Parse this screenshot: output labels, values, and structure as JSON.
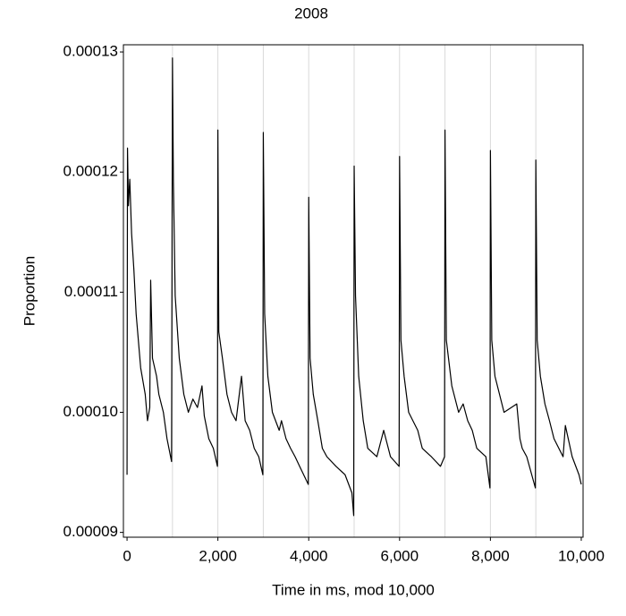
{
  "chart_data": {
    "type": "line",
    "title": "2008",
    "x_label": "Time in ms, mod 10,000",
    "y_label": "Proportion",
    "color": "#000000",
    "x": [
      0,
      10,
      30,
      60,
      100,
      150,
      200,
      300,
      400,
      450,
      500,
      520,
      560,
      650,
      700,
      800,
      880,
      980,
      1000,
      1020,
      1060,
      1150,
      1250,
      1350,
      1450,
      1550,
      1650,
      1700,
      1800,
      1900,
      1990,
      2000,
      2020,
      2100,
      2200,
      2300,
      2400,
      2520,
      2600,
      2700,
      2800,
      2900,
      2990,
      3000,
      3030,
      3100,
      3200,
      3350,
      3400,
      3500,
      3600,
      3700,
      3800,
      3990,
      4000,
      4030,
      4100,
      4200,
      4300,
      4400,
      4600,
      4800,
      4950,
      4990,
      5000,
      5030,
      5100,
      5200,
      5300,
      5500,
      5650,
      5800,
      5990,
      6000,
      6030,
      6100,
      6200,
      6400,
      6500,
      6700,
      6900,
      6990,
      7000,
      7030,
      7150,
      7300,
      7400,
      7500,
      7600,
      7700,
      7900,
      7990,
      8000,
      8030,
      8100,
      8200,
      8300,
      8580,
      8650,
      8700,
      8800,
      8990,
      9000,
      9030,
      9100,
      9200,
      9300,
      9400,
      9600,
      9650,
      9800,
      9950,
      10000
    ],
    "values": [
      9.48e-05,
      0.000122,
      0.0001172,
      0.0001194,
      0.0001149,
      0.0001119,
      0.0001082,
      0.0001037,
      0.0001015,
      9.93e-05,
      0.0001004,
      0.000111,
      0.0001045,
      0.000103,
      0.0001015,
      0.0001,
      9.78e-05,
      9.59e-05,
      0.0001295,
      0.0001194,
      0.0001097,
      0.0001045,
      0.0001015,
      0.0001,
      0.0001011,
      0.0001004,
      0.0001022,
      9.97e-05,
      9.78e-05,
      9.7e-05,
      9.55e-05,
      0.0001235,
      0.0001067,
      0.0001045,
      0.0001015,
      0.0001,
      9.93e-05,
      0.000103,
      9.93e-05,
      9.85e-05,
      9.7e-05,
      9.63e-05,
      9.48e-05,
      0.0001233,
      0.0001082,
      0.000103,
      0.0001,
      9.85e-05,
      9.93e-05,
      9.78e-05,
      9.7e-05,
      9.63e-05,
      9.55e-05,
      9.4e-05,
      0.0001179,
      0.0001045,
      0.0001015,
      9.93e-05,
      9.7e-05,
      9.63e-05,
      9.55e-05,
      9.48e-05,
      9.33e-05,
      9.14e-05,
      0.0001205,
      0.0001097,
      0.000103,
      9.93e-05,
      9.7e-05,
      9.63e-05,
      9.85e-05,
      9.63e-05,
      9.55e-05,
      0.0001213,
      0.000106,
      0.000103,
      0.0001,
      9.85e-05,
      9.7e-05,
      9.63e-05,
      9.55e-05,
      9.63e-05,
      0.0001235,
      0.000106,
      0.0001022,
      0.0001,
      0.0001007,
      9.93e-05,
      9.85e-05,
      9.7e-05,
      9.63e-05,
      9.37e-05,
      0.0001218,
      0.000106,
      0.000103,
      0.0001015,
      0.0001,
      0.0001007,
      9.78e-05,
      9.7e-05,
      9.63e-05,
      9.37e-05,
      0.000121,
      0.000106,
      0.000103,
      0.0001007,
      9.93e-05,
      9.78e-05,
      9.63e-05,
      9.89e-05,
      9.63e-05,
      9.48e-05,
      9.4e-05
    ],
    "xlim": [
      -80,
      10040
    ],
    "ylim": [
      8.96e-05,
      0.0001306
    ],
    "xticks": [
      0,
      {
        "value": 2000,
        "label": "2,000"
      },
      {
        "value": 4000,
        "label": "4,000"
      },
      {
        "value": 6000,
        "label": "6,000"
      },
      {
        "value": 8000,
        "label": "8,000"
      },
      {
        "value": 10000,
        "label": "10,000"
      }
    ],
    "yticks": [
      9e-05,
      {
        "value": 0.0001,
        "label": "0.00010"
      },
      0.00011,
      0.00012,
      0.00013
    ],
    "grid_x": [
      1000,
      2000,
      3000,
      4000,
      5000,
      6000,
      7000,
      8000,
      9000
    ]
  }
}
